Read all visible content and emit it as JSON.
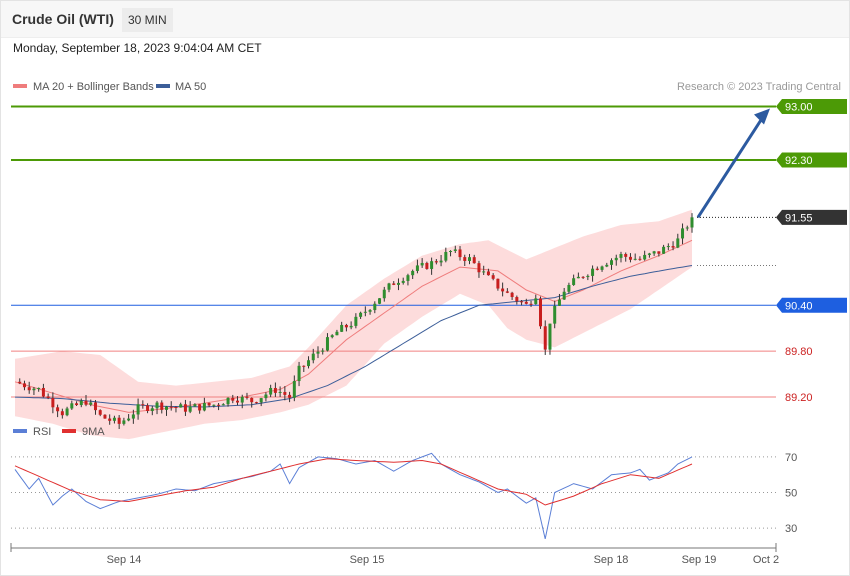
{
  "header": {
    "instrument": "Crude Oil (WTI)",
    "timeframe": "30 MIN",
    "datetime": "Monday, September 18, 2023 9:04:04 AM CET"
  },
  "legend": {
    "ma20": "MA 20 + Bollinger Bands",
    "ma50": "MA 50",
    "rsi": "RSI",
    "ma9": "9MA",
    "credit": "Research © 2023 Trading Central"
  },
  "colors": {
    "resistance": "#4c9a06",
    "last": "#333333",
    "pivot": "#1e5fe0",
    "support": "#f08080",
    "bollinger": "#fddcdc",
    "ma20": "#ef7c7c",
    "ma50": "#3c5e99",
    "rsi": "#5b7fd6",
    "ma9": "#e03030",
    "up": "#2f8d2f",
    "down": "#c81e1e",
    "arrow": "#2c5aa0"
  },
  "chart_data": [
    {
      "type": "candlestick",
      "title": "Crude Oil (WTI)",
      "y_range": [
        88.9,
        93.15
      ],
      "x_ticks": [
        "Sep 14",
        "Sep 15",
        "Sep 18",
        "Sep 19",
        "Oct 2"
      ],
      "levels": [
        {
          "value": 93.0,
          "label": "93.00",
          "kind": "resistance"
        },
        {
          "value": 92.3,
          "label": "92.30",
          "kind": "resistance"
        },
        {
          "value": 91.55,
          "label": "91.55",
          "kind": "last"
        },
        {
          "value": 90.4,
          "label": "90.40",
          "kind": "pivot"
        },
        {
          "value": 89.8,
          "label": "89.80",
          "kind": "support"
        },
        {
          "value": 89.2,
          "label": "89.20",
          "kind": "support"
        }
      ],
      "forecast_target": 93.0,
      "close_path": [
        [
          0,
          89.4
        ],
        [
          5,
          89.3
        ],
        [
          10,
          89.0
        ],
        [
          15,
          89.15
        ],
        [
          18,
          88.95
        ],
        [
          22,
          88.85
        ],
        [
          26,
          89.05
        ],
        [
          30,
          89.1
        ],
        [
          36,
          89.05
        ],
        [
          42,
          89.1
        ],
        [
          46,
          89.2
        ],
        [
          50,
          89.15
        ],
        [
          55,
          89.3
        ],
        [
          58,
          89.2
        ],
        [
          60,
          89.55
        ],
        [
          64,
          89.8
        ],
        [
          68,
          90.05
        ],
        [
          72,
          90.2
        ],
        [
          76,
          90.45
        ],
        [
          80,
          90.7
        ],
        [
          84,
          90.85
        ],
        [
          88,
          90.95
        ],
        [
          92,
          91.1
        ],
        [
          96,
          91.0
        ],
        [
          100,
          90.75
        ],
        [
          104,
          90.55
        ],
        [
          108,
          90.4
        ],
        [
          110,
          90.55
        ],
        [
          112,
          89.8
        ],
        [
          113,
          90.2
        ],
        [
          116,
          90.6
        ],
        [
          120,
          90.8
        ],
        [
          124,
          90.95
        ],
        [
          128,
          91.05
        ],
        [
          132,
          91.0
        ],
        [
          136,
          91.1
        ],
        [
          140,
          91.25
        ],
        [
          143,
          91.55
        ]
      ],
      "ma20": [
        [
          0,
          89.4
        ],
        [
          8,
          89.25
        ],
        [
          16,
          89.1
        ],
        [
          24,
          89.0
        ],
        [
          32,
          89.05
        ],
        [
          40,
          89.12
        ],
        [
          48,
          89.2
        ],
        [
          56,
          89.3
        ],
        [
          62,
          89.5
        ],
        [
          70,
          89.95
        ],
        [
          78,
          90.3
        ],
        [
          86,
          90.65
        ],
        [
          94,
          90.9
        ],
        [
          102,
          90.85
        ],
        [
          108,
          90.6
        ],
        [
          114,
          90.45
        ],
        [
          120,
          90.6
        ],
        [
          128,
          90.85
        ],
        [
          136,
          91.05
        ],
        [
          143,
          91.25
        ]
      ],
      "ma50": [
        [
          0,
          89.2
        ],
        [
          10,
          89.18
        ],
        [
          20,
          89.12
        ],
        [
          30,
          89.08
        ],
        [
          40,
          89.07
        ],
        [
          50,
          89.1
        ],
        [
          58,
          89.18
        ],
        [
          66,
          89.35
        ],
        [
          74,
          89.6
        ],
        [
          82,
          89.9
        ],
        [
          90,
          90.2
        ],
        [
          98,
          90.4
        ],
        [
          106,
          90.45
        ],
        [
          114,
          90.5
        ],
        [
          122,
          90.65
        ],
        [
          130,
          90.78
        ],
        [
          138,
          90.87
        ],
        [
          143,
          90.92
        ]
      ],
      "band_upper": [
        [
          0,
          89.7
        ],
        [
          10,
          89.8
        ],
        [
          18,
          89.75
        ],
        [
          26,
          89.4
        ],
        [
          34,
          89.35
        ],
        [
          42,
          89.4
        ],
        [
          50,
          89.45
        ],
        [
          58,
          89.6
        ],
        [
          62,
          89.85
        ],
        [
          70,
          90.4
        ],
        [
          78,
          90.75
        ],
        [
          86,
          91.05
        ],
        [
          94,
          91.2
        ],
        [
          100,
          91.25
        ],
        [
          108,
          91.0
        ],
        [
          112,
          91.1
        ],
        [
          120,
          91.3
        ],
        [
          128,
          91.45
        ],
        [
          136,
          91.5
        ],
        [
          143,
          91.65
        ]
      ],
      "band_lower": [
        [
          0,
          88.95
        ],
        [
          8,
          88.85
        ],
        [
          16,
          88.7
        ],
        [
          24,
          88.65
        ],
        [
          32,
          88.75
        ],
        [
          40,
          88.85
        ],
        [
          48,
          88.9
        ],
        [
          56,
          89.0
        ],
        [
          62,
          89.1
        ],
        [
          70,
          89.35
        ],
        [
          78,
          89.9
        ],
        [
          86,
          90.25
        ],
        [
          94,
          90.55
        ],
        [
          100,
          90.4
        ],
        [
          104,
          90.1
        ],
        [
          108,
          89.95
        ],
        [
          114,
          89.85
        ],
        [
          122,
          90.1
        ],
        [
          130,
          90.35
        ],
        [
          143,
          90.9
        ]
      ]
    },
    {
      "type": "line",
      "title": "RSI",
      "y_range": [
        20,
        75
      ],
      "y_ticks": [
        30,
        50,
        70
      ],
      "series": [
        {
          "name": "RSI",
          "values": [
            [
              0,
              63
            ],
            [
              3,
              52
            ],
            [
              5,
              58
            ],
            [
              8,
              43
            ],
            [
              10,
              48
            ],
            [
              12,
              52
            ],
            [
              15,
              45
            ],
            [
              18,
              41
            ],
            [
              22,
              45
            ],
            [
              26,
              47
            ],
            [
              30,
              49
            ],
            [
              34,
              52
            ],
            [
              38,
              51
            ],
            [
              42,
              55
            ],
            [
              46,
              57
            ],
            [
              50,
              59
            ],
            [
              54,
              62
            ],
            [
              56,
              66
            ],
            [
              58,
              55
            ],
            [
              60,
              64
            ],
            [
              64,
              70
            ],
            [
              68,
              69
            ],
            [
              72,
              66
            ],
            [
              76,
              68
            ],
            [
              80,
              62
            ],
            [
              84,
              68
            ],
            [
              88,
              72
            ],
            [
              90,
              66
            ],
            [
              94,
              60
            ],
            [
              98,
              56
            ],
            [
              102,
              50
            ],
            [
              104,
              52
            ],
            [
              108,
              44
            ],
            [
              110,
              47
            ],
            [
              112,
              24
            ],
            [
              114,
              50
            ],
            [
              118,
              55
            ],
            [
              122,
              52
            ],
            [
              126,
              60
            ],
            [
              130,
              61
            ],
            [
              132,
              63
            ],
            [
              134,
              57
            ],
            [
              138,
              61
            ],
            [
              140,
              66
            ],
            [
              143,
              70
            ]
          ]
        },
        {
          "name": "9MA",
          "values": [
            [
              0,
              65
            ],
            [
              6,
              58
            ],
            [
              12,
              51
            ],
            [
              18,
              46
            ],
            [
              24,
              45
            ],
            [
              30,
              48
            ],
            [
              36,
              51
            ],
            [
              42,
              53
            ],
            [
              48,
              58
            ],
            [
              54,
              62
            ],
            [
              60,
              66
            ],
            [
              66,
              69
            ],
            [
              72,
              68
            ],
            [
              80,
              67
            ],
            [
              86,
              68
            ],
            [
              90,
              66
            ],
            [
              96,
              59
            ],
            [
              102,
              52
            ],
            [
              108,
              49
            ],
            [
              112,
              43
            ],
            [
              118,
              48
            ],
            [
              124,
              55
            ],
            [
              130,
              60
            ],
            [
              136,
              58
            ],
            [
              143,
              66
            ]
          ]
        }
      ]
    }
  ]
}
